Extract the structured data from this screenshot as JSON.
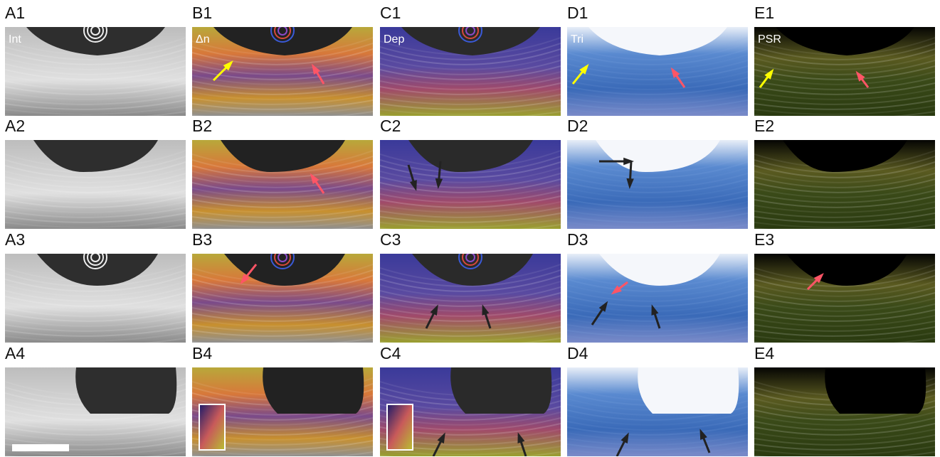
{
  "panels": [
    {
      "label": "A1",
      "tag": "Int"
    },
    {
      "label": "B1",
      "tag": "Δn"
    },
    {
      "label": "C1",
      "tag": "Dep"
    },
    {
      "label": "D1",
      "tag": "Tri"
    },
    {
      "label": "E1",
      "tag": "PSR"
    },
    {
      "label": "A2"
    },
    {
      "label": "B2"
    },
    {
      "label": "C2"
    },
    {
      "label": "D2"
    },
    {
      "label": "E2"
    },
    {
      "label": "A3"
    },
    {
      "label": "B3"
    },
    {
      "label": "C3"
    },
    {
      "label": "D3"
    },
    {
      "label": "E3"
    },
    {
      "label": "A4"
    },
    {
      "label": "B4"
    },
    {
      "label": "C4"
    },
    {
      "label": "D4"
    },
    {
      "label": "E4"
    }
  ]
}
